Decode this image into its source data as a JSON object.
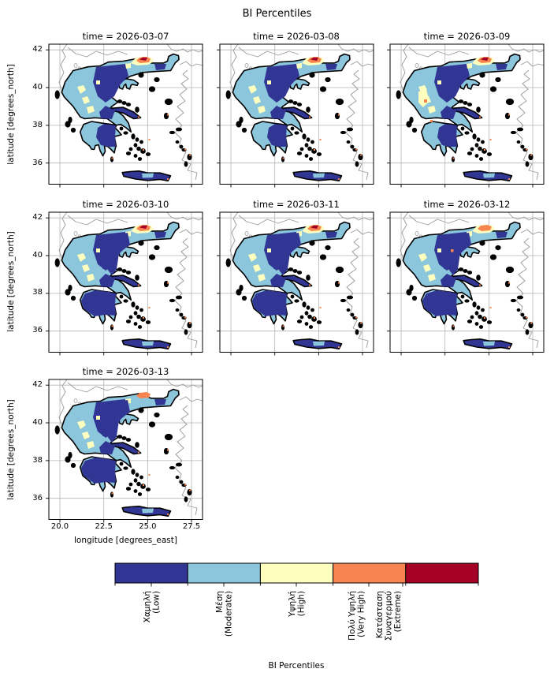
{
  "figure_title": "BI Percentiles",
  "panels": [
    {
      "title": "time = 2026-03-07",
      "variant": "v1"
    },
    {
      "title": "time = 2026-03-08",
      "variant": "v2"
    },
    {
      "title": "time = 2026-03-09",
      "variant": "v3"
    },
    {
      "title": "time = 2026-03-10",
      "variant": "v4"
    },
    {
      "title": "time = 2026-03-11",
      "variant": "v5"
    },
    {
      "title": "time = 2026-03-12",
      "variant": "v6"
    },
    {
      "title": "time = 2026-03-13",
      "variant": "v7"
    }
  ],
  "axes": {
    "x_label": "longitude [degrees_east]",
    "y_label": "latitude [degrees_north]",
    "x_ticks": [
      "20.0",
      "22.5",
      "25.0",
      "27.5"
    ],
    "y_ticks": [
      "42",
      "40",
      "38",
      "36"
    ]
  },
  "colorbar": {
    "label": "BI Percentiles",
    "categories": [
      {
        "name": "Low",
        "label_lines": [
          "Χαμηλή",
          "(Low)"
        ],
        "color": "#313695"
      },
      {
        "name": "Moderate",
        "label_lines": [
          "Μέση",
          "(Moderate)"
        ],
        "color": "#8cc6dd"
      },
      {
        "name": "High",
        "label_lines": [
          "Υψηλή",
          "(High)"
        ],
        "color": "#fefebe"
      },
      {
        "name": "Very High",
        "label_lines": [
          "Πολύ Υψηλή",
          "(Very High)"
        ],
        "color": "#f8854f"
      },
      {
        "name": "Extreme",
        "label_lines": [
          "Κατάσταση",
          "Συναγερμού",
          "(Extreme)"
        ],
        "color": "#a50026"
      }
    ]
  },
  "map_style": {
    "grid_color": "#b4b4b4",
    "neighbor_coast_color": "#9a9a9a",
    "coastline_color": "#000000",
    "background": "#ffffff"
  },
  "chart_data": {
    "type": "heatmap",
    "title": "BI Percentiles",
    "facet_variable": "time",
    "facets": [
      "2026-03-07",
      "2026-03-08",
      "2026-03-09",
      "2026-03-10",
      "2026-03-11",
      "2026-03-12",
      "2026-03-13"
    ],
    "xlabel": "longitude [degrees_east]",
    "ylabel": "latitude [degrees_north]",
    "xlim": [
      19.4,
      28.1
    ],
    "ylim": [
      34.9,
      42.3
    ],
    "x_ticks": [
      20.0,
      22.5,
      25.0,
      27.5
    ],
    "y_ticks": [
      36,
      38,
      40,
      42
    ],
    "region": "Greece",
    "grid_on": true,
    "legend_position": "horizontal colorbar at bottom",
    "categories": [
      "Χαμηλή (Low)",
      "Μέση (Moderate)",
      "Υψηλή (High)",
      "Πολύ Υψηλή (Very High)",
      "Κατάσταση Συναγερμού (Extreme)"
    ],
    "category_colors": [
      "#313695",
      "#8cc6dd",
      "#fefebe",
      "#f8854f",
      "#a50026"
    ],
    "facet_summaries": [
      "Mostly Low/Moderate with High patches in west; Very High-Extreme hotspot on northern border (~41.3N, 24.5E)",
      "Similar to 03-07; hotspot mostly Very High with High fringe",
      "Larger Extreme+Very High hotspot in north; High patches and Very High specks in west (Epirus)",
      "More Low (navy) over east and Peloponnese; Extreme+Very High hotspot in north",
      "Navy-dominated east/south; Moderate west; small Extreme sliver in northern hotspot",
      "Navy-dominated; small Very High/High hotspot in north; isolated Very High speck in center",
      "Navy-dominated; tiny Very High hotspot in north"
    ]
  }
}
